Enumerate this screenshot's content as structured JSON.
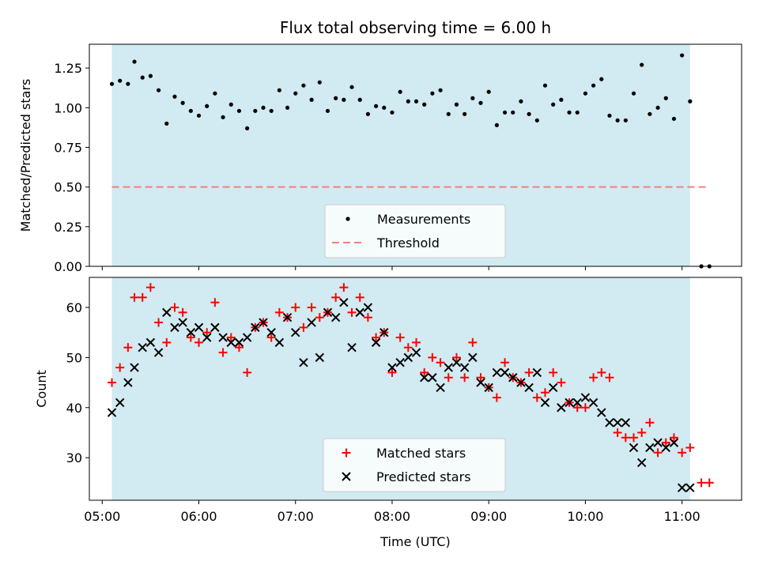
{
  "chart_data": [
    {
      "type": "scatter",
      "title": "Flux total observing time = 6.00 h",
      "ylabel": "Matched/Predicted stars",
      "xlabel": "",
      "ylim": [
        0,
        1.4
      ],
      "xlim_minutes": [
        292,
        697
      ],
      "yticks": [
        0.0,
        0.25,
        0.5,
        0.75,
        1.0,
        1.25
      ],
      "ytick_labels": [
        "0.00",
        "0.25",
        "0.50",
        "0.75",
        "1.00",
        "1.25"
      ],
      "shaded_span_minutes": [
        306,
        665
      ],
      "shade_color": "#add8e6",
      "threshold": {
        "name": "Threshold",
        "y": 0.5,
        "x_range_minutes": [
          306,
          677
        ],
        "color": "#f08080"
      },
      "measurement_color": "#000000",
      "legend": {
        "placement": "lower-center",
        "entries": [
          "Measurements",
          "Threshold"
        ]
      },
      "series": [
        {
          "name": "Measurements",
          "x": [
            306,
            311,
            316,
            320,
            325,
            330,
            335,
            340,
            345,
            350,
            355,
            360,
            365,
            370,
            375,
            380,
            385,
            390,
            395,
            400,
            405,
            410,
            415,
            420,
            425,
            430,
            435,
            440,
            445,
            450,
            455,
            460,
            465,
            470,
            475,
            480,
            485,
            490,
            495,
            500,
            505,
            510,
            515,
            520,
            525,
            530,
            535,
            540,
            545,
            550,
            555,
            560,
            565,
            570,
            575,
            580,
            585,
            590,
            595,
            600,
            605,
            610,
            615,
            620,
            625,
            630,
            635,
            640,
            645,
            650,
            655,
            660,
            665,
            672,
            677
          ],
          "y": [
            1.15,
            1.17,
            1.15,
            1.29,
            1.19,
            1.2,
            1.11,
            0.9,
            1.07,
            1.03,
            0.98,
            0.95,
            1.01,
            1.09,
            0.94,
            1.02,
            0.98,
            0.87,
            0.98,
            1.0,
            0.98,
            1.11,
            1.0,
            1.09,
            1.14,
            1.05,
            1.16,
            0.98,
            1.06,
            1.05,
            1.13,
            1.05,
            0.96,
            1.01,
            1.0,
            0.97,
            1.1,
            1.04,
            1.04,
            1.02,
            1.09,
            1.11,
            0.96,
            1.02,
            0.96,
            1.06,
            1.03,
            1.1,
            0.89,
            0.97,
            0.97,
            1.04,
            0.96,
            0.92,
            1.14,
            1.02,
            1.05,
            0.97,
            0.97,
            1.09,
            1.14,
            1.18,
            0.95,
            0.92,
            0.92,
            1.09,
            1.27,
            0.96,
            1.0,
            1.06,
            0.93,
            1.33,
            1.04,
            0.0,
            0.0
          ]
        }
      ]
    },
    {
      "type": "scatter",
      "title": "",
      "ylabel": "Count",
      "xlabel": "Time (UTC)",
      "ylim": [
        21.5,
        66
      ],
      "xlim_minutes": [
        292,
        697
      ],
      "yticks": [
        30,
        40,
        50,
        60
      ],
      "ytick_labels": [
        "30",
        "40",
        "50",
        "60"
      ],
      "xticks_minutes": [
        300,
        360,
        420,
        480,
        540,
        600,
        660
      ],
      "xtick_labels": [
        "05:00",
        "06:00",
        "07:00",
        "08:00",
        "09:00",
        "10:00",
        "11:00"
      ],
      "shaded_span_minutes": [
        306,
        665
      ],
      "shade_color": "#add8e6",
      "legend": {
        "placement": "lower-center",
        "entries": [
          "Matched stars",
          "Predicted stars"
        ]
      },
      "series": [
        {
          "name": "Matched stars",
          "marker": "+",
          "color": "#ff0000",
          "x": [
            306,
            311,
            316,
            320,
            325,
            330,
            335,
            340,
            345,
            350,
            355,
            360,
            365,
            370,
            375,
            380,
            385,
            390,
            395,
            400,
            405,
            410,
            415,
            420,
            425,
            430,
            435,
            440,
            445,
            450,
            455,
            460,
            465,
            470,
            475,
            480,
            485,
            490,
            495,
            500,
            505,
            510,
            515,
            520,
            525,
            530,
            535,
            540,
            545,
            550,
            555,
            560,
            565,
            570,
            575,
            580,
            585,
            590,
            595,
            600,
            605,
            610,
            615,
            620,
            625,
            630,
            635,
            640,
            645,
            650,
            655,
            660,
            665,
            672,
            677
          ],
          "y": [
            45,
            48,
            52,
            62,
            62,
            64,
            57,
            53,
            60,
            59,
            54,
            53,
            55,
            61,
            51,
            54,
            52,
            47,
            56,
            57,
            54,
            59,
            58,
            60,
            56,
            60,
            58,
            59,
            62,
            64,
            59,
            62,
            58,
            54,
            55,
            47,
            54,
            52,
            53,
            47,
            50,
            49,
            46,
            50,
            46,
            53,
            46,
            44,
            42,
            49,
            46,
            45,
            47,
            42,
            43,
            47,
            45,
            41,
            40,
            40,
            46,
            47,
            46,
            35,
            34,
            34,
            35,
            37,
            31,
            33,
            34,
            31,
            32,
            25,
            25
          ]
        },
        {
          "name": "Predicted stars",
          "marker": "x",
          "color": "#000000",
          "x": [
            306,
            311,
            316,
            320,
            325,
            330,
            335,
            340,
            345,
            350,
            355,
            360,
            365,
            370,
            375,
            380,
            385,
            390,
            395,
            400,
            405,
            410,
            415,
            420,
            425,
            430,
            435,
            440,
            445,
            450,
            455,
            460,
            465,
            470,
            475,
            480,
            485,
            490,
            495,
            500,
            505,
            510,
            515,
            520,
            525,
            530,
            535,
            540,
            545,
            550,
            555,
            560,
            565,
            570,
            575,
            580,
            585,
            590,
            595,
            600,
            605,
            610,
            615,
            620,
            625,
            630,
            635,
            640,
            645,
            650,
            655,
            660,
            665,
            672,
            677
          ],
          "y": [
            39,
            41,
            45,
            48,
            52,
            53,
            51,
            59,
            56,
            57,
            55,
            56,
            54,
            56,
            54,
            53,
            53,
            54,
            56,
            57,
            55,
            53,
            58,
            55,
            49,
            57,
            50,
            59,
            58,
            61,
            52,
            59,
            60,
            53,
            55,
            48,
            49,
            50,
            51,
            46,
            46,
            44,
            48,
            49,
            48,
            50,
            45,
            44,
            47,
            47,
            46,
            45,
            44,
            47,
            41,
            44,
            40,
            41,
            41,
            42,
            41,
            39,
            37,
            37,
            37,
            32,
            29,
            32,
            33,
            32,
            33,
            24,
            24,
            null,
            null
          ]
        }
      ]
    }
  ]
}
